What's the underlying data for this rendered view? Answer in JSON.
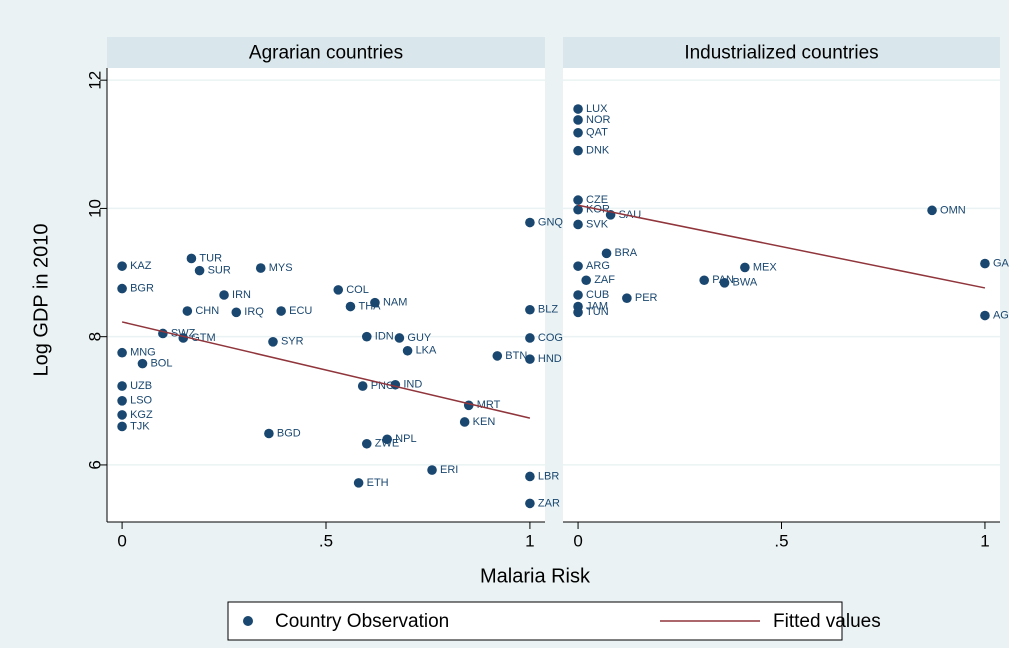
{
  "chart_data": {
    "type": "scatter",
    "ylabel": "Log GDP in 2010",
    "xlabel": "Malaria Risk",
    "xlim": [
      -0.037,
      1.037
    ],
    "ylim": [
      5.11,
      12.19
    ],
    "xticks": [
      0,
      {
        "value": 0.5,
        "label": ".5"
      },
      1
    ],
    "yticks": [
      6,
      8,
      10,
      12
    ],
    "grid": true,
    "panels": [
      {
        "title": "Agrarian countries",
        "series": [
          {
            "name": "Country Observation",
            "color": "#1a476f",
            "labels": [
              "KAZ",
              "TUR",
              "MYS",
              "SUR",
              "BGR",
              "IRN",
              "COL",
              "NAM",
              "THA",
              "CHN",
              "IRQ",
              "ECU",
              "SWZ",
              "GTM",
              "SYR",
              "IDN",
              "GUY",
              "LKA",
              "MNG",
              "BOL",
              "BTN",
              "IND",
              "PNG",
              "UZB",
              "LSO",
              "MRT",
              "KEN",
              "KGZ",
              "TJK",
              "BGD",
              "NPL",
              "ZWE",
              "ERI",
              "ETH",
              "GNQ",
              "BLZ",
              "COG",
              "HND",
              "LBR",
              "ZAR"
            ],
            "x": [
              0,
              0.17,
              0.34,
              0.19,
              0,
              0.25,
              0.53,
              0.62,
              0.56,
              0.16,
              0.28,
              0.39,
              0.1,
              0.15,
              0.37,
              0.6,
              0.68,
              0.7,
              0,
              0.05,
              0.92,
              0.67,
              0.59,
              0,
              0,
              0.85,
              0.84,
              0,
              0,
              0.36,
              0.65,
              0.6,
              0.76,
              0.58,
              1,
              1,
              1,
              1,
              1,
              1
            ],
            "values": [
              9.1,
              9.22,
              9.07,
              9.03,
              8.75,
              8.65,
              8.73,
              8.53,
              8.47,
              8.4,
              8.38,
              8.4,
              8.05,
              7.98,
              7.92,
              8.0,
              7.98,
              7.78,
              7.75,
              7.58,
              7.7,
              7.25,
              7.23,
              7.23,
              7.0,
              6.93,
              6.67,
              6.78,
              6.6,
              6.49,
              6.4,
              6.33,
              5.92,
              5.72,
              9.78,
              8.42,
              7.98,
              7.65,
              5.82,
              5.4
            ]
          },
          {
            "name": "Fitted values",
            "color": "#90353b",
            "x": [
              0,
              1
            ],
            "values": [
              8.23,
              6.73
            ]
          }
        ]
      },
      {
        "title": "Industrialized countries",
        "series": [
          {
            "name": "Country Observation",
            "color": "#1a476f",
            "labels": [
              "LUX",
              "NOR",
              "QAT",
              "DNK",
              "CZE",
              "KOR",
              "SAU",
              "SVK",
              "BRA",
              "ARG",
              "ZAF",
              "PAN",
              "MEX",
              "BWA",
              "CUB",
              "PER",
              "JAM",
              "TUN",
              "OMN",
              "GAB",
              "AGO"
            ],
            "x": [
              0,
              0,
              0,
              0,
              0,
              0,
              0.08,
              0,
              0.07,
              0,
              0.02,
              0.31,
              0.41,
              0.36,
              0,
              0.12,
              0,
              0,
              0.87,
              1,
              1
            ],
            "values": [
              11.55,
              11.38,
              11.18,
              10.9,
              10.13,
              9.98,
              9.9,
              9.75,
              9.3,
              9.1,
              8.88,
              8.88,
              9.08,
              8.84,
              8.65,
              8.6,
              8.47,
              8.38,
              9.97,
              9.14,
              8.33
            ]
          },
          {
            "name": "Fitted values",
            "color": "#90353b",
            "x": [
              0,
              1
            ],
            "values": [
              10.05,
              8.76
            ]
          }
        ]
      }
    ]
  }
}
